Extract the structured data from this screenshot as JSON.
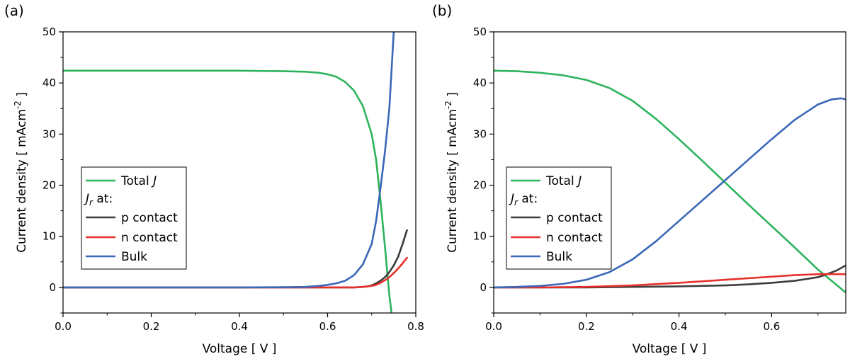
{
  "chart_data": [
    {
      "panel_label": "(a)",
      "type": "line",
      "xlabel": "Voltage [ V ]",
      "ylabel_main": "Current density [ mAcm",
      "ylabel_sup": "-2",
      "ylabel_end": " ]",
      "xlim": [
        0,
        0.8
      ],
      "ylim": [
        -5,
        50
      ],
      "xticks": [
        0.0,
        0.2,
        0.4,
        0.6,
        0.8
      ],
      "xtick_labels": [
        "0.0",
        "0.2",
        "0.4",
        "0.6",
        "0.8"
      ],
      "yticks": [
        0,
        10,
        20,
        30,
        40,
        50
      ],
      "ytick_labels": [
        "0",
        "10",
        "20",
        "30",
        "40",
        "50"
      ],
      "grid": false,
      "legend_position": "center-left",
      "legend": {
        "total_prefix": "Total ",
        "total_italic": "J",
        "jr_italic": "J",
        "jr_sub": "r",
        "jr_suffix": " at:"
      },
      "series": [
        {
          "name": "Total J",
          "color": "#2db35c",
          "x": [
            0.0,
            0.1,
            0.2,
            0.3,
            0.4,
            0.5,
            0.55,
            0.58,
            0.6,
            0.62,
            0.64,
            0.66,
            0.68,
            0.7,
            0.71,
            0.72,
            0.73,
            0.74,
            0.745
          ],
          "y": [
            42.4,
            42.4,
            42.4,
            42.4,
            42.4,
            42.3,
            42.2,
            42.0,
            41.7,
            41.2,
            40.2,
            38.5,
            35.5,
            30.0,
            25.0,
            17.0,
            8.0,
            -1.5,
            -5.0
          ]
        },
        {
          "name": "p contact",
          "color": "#3d3d3d",
          "x": [
            0.0,
            0.2,
            0.4,
            0.6,
            0.66,
            0.68,
            0.69,
            0.7,
            0.71,
            0.72,
            0.73,
            0.74,
            0.75,
            0.76,
            0.77,
            0.78
          ],
          "y": [
            0.0,
            0.0,
            0.0,
            0.0,
            0.0,
            0.1,
            0.2,
            0.4,
            0.8,
            1.3,
            2.0,
            3.0,
            4.3,
            6.0,
            8.5,
            11.2
          ]
        },
        {
          "name": "n contact",
          "color": "#e8302a",
          "x": [
            0.0,
            0.2,
            0.4,
            0.6,
            0.66,
            0.68,
            0.7,
            0.71,
            0.72,
            0.73,
            0.74,
            0.75,
            0.76,
            0.77,
            0.78
          ],
          "y": [
            0.0,
            0.0,
            0.0,
            0.0,
            0.0,
            0.1,
            0.3,
            0.5,
            0.9,
            1.4,
            2.0,
            2.8,
            3.7,
            4.7,
            5.8
          ]
        },
        {
          "name": "Bulk",
          "color": "#3a67b7",
          "x": [
            0.0,
            0.2,
            0.4,
            0.5,
            0.55,
            0.58,
            0.6,
            0.62,
            0.64,
            0.66,
            0.68,
            0.7,
            0.71,
            0.72,
            0.73,
            0.74,
            0.75
          ],
          "y": [
            0.0,
            0.0,
            0.0,
            0.05,
            0.1,
            0.3,
            0.5,
            0.8,
            1.3,
            2.4,
            4.5,
            8.5,
            13.0,
            19.5,
            26.5,
            35.0,
            50.0
          ]
        }
      ]
    },
    {
      "panel_label": "(b)",
      "type": "line",
      "xlabel": "Voltage [ V ]",
      "ylabel_main": "Current density [ mAcm",
      "ylabel_sup": "-2",
      "ylabel_end": " ]",
      "xlim": [
        0,
        0.76
      ],
      "ylim": [
        -5,
        50
      ],
      "xticks": [
        0.0,
        0.2,
        0.4,
        0.6
      ],
      "xtick_labels": [
        "0.0",
        "0.2",
        "0.4",
        "0.6"
      ],
      "yticks": [
        0,
        10,
        20,
        30,
        40,
        50
      ],
      "ytick_labels": [
        "0",
        "10",
        "20",
        "30",
        "40",
        "50"
      ],
      "grid": false,
      "legend_position": "center-left",
      "legend": {
        "total_prefix": "Total ",
        "total_italic": "J",
        "jr_italic": "J",
        "jr_sub": "r",
        "jr_suffix": " at:"
      },
      "series": [
        {
          "name": "Total J",
          "color": "#2db35c",
          "x": [
            0.0,
            0.05,
            0.1,
            0.15,
            0.2,
            0.25,
            0.3,
            0.35,
            0.4,
            0.45,
            0.5,
            0.55,
            0.6,
            0.65,
            0.7,
            0.76
          ],
          "y": [
            42.4,
            42.3,
            42.0,
            41.5,
            40.6,
            39.0,
            36.5,
            33.0,
            29.0,
            24.8,
            20.5,
            16.2,
            12.0,
            7.8,
            3.5,
            -1.0
          ]
        },
        {
          "name": "p contact",
          "color": "#3d3d3d",
          "x": [
            0.0,
            0.2,
            0.3,
            0.4,
            0.5,
            0.55,
            0.6,
            0.65,
            0.7,
            0.72,
            0.74,
            0.76
          ],
          "y": [
            0.0,
            0.0,
            0.1,
            0.2,
            0.4,
            0.6,
            0.9,
            1.3,
            2.0,
            2.6,
            3.3,
            4.3
          ]
        },
        {
          "name": "n contact",
          "color": "#e8302a",
          "x": [
            0.0,
            0.1,
            0.2,
            0.3,
            0.4,
            0.5,
            0.6,
            0.65,
            0.7,
            0.76
          ],
          "y": [
            0.0,
            0.0,
            0.1,
            0.4,
            0.9,
            1.5,
            2.1,
            2.4,
            2.6,
            2.6
          ]
        },
        {
          "name": "Bulk",
          "color": "#3a67b7",
          "x": [
            0.0,
            0.05,
            0.1,
            0.15,
            0.2,
            0.25,
            0.3,
            0.35,
            0.4,
            0.45,
            0.5,
            0.55,
            0.6,
            0.65,
            0.7,
            0.73,
            0.75,
            0.76
          ],
          "y": [
            0.0,
            0.1,
            0.3,
            0.7,
            1.5,
            3.0,
            5.5,
            9.0,
            13.0,
            17.0,
            21.0,
            25.0,
            29.0,
            32.8,
            35.8,
            36.8,
            37.0,
            36.8
          ]
        }
      ]
    }
  ]
}
